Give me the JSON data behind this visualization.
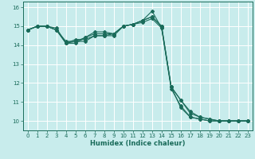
{
  "xlabel": "Humidex (Indice chaleur)",
  "xlim": [
    -0.5,
    23.5
  ],
  "ylim": [
    9.5,
    16.3
  ],
  "yticks": [
    10,
    11,
    12,
    13,
    14,
    15,
    16
  ],
  "xticks": [
    0,
    1,
    2,
    3,
    4,
    5,
    6,
    7,
    8,
    9,
    10,
    11,
    12,
    13,
    14,
    15,
    16,
    17,
    18,
    19,
    20,
    21,
    22,
    23
  ],
  "background_color": "#c8ecec",
  "grid_color": "#ffffff",
  "line_color": "#1a6b5a",
  "lines": [
    {
      "x": [
        0,
        1,
        2,
        3,
        4,
        5,
        6,
        7,
        8,
        9,
        10,
        11,
        12,
        13,
        14,
        15,
        16,
        17,
        18,
        19,
        20,
        21,
        22,
        23
      ],
      "y": [
        14.8,
        15.0,
        15.0,
        14.8,
        14.1,
        14.2,
        14.4,
        14.6,
        14.6,
        14.6,
        15.0,
        15.1,
        15.3,
        15.8,
        14.9,
        11.8,
        11.1,
        10.4,
        10.2,
        10.1,
        10.0,
        10.0,
        10.0,
        10.0
      ]
    },
    {
      "x": [
        0,
        1,
        2,
        3,
        4,
        5,
        6,
        7,
        8,
        9,
        10,
        11,
        12,
        13,
        14,
        15,
        16,
        17,
        18,
        19,
        20,
        21,
        22,
        23
      ],
      "y": [
        14.8,
        15.0,
        15.0,
        14.9,
        14.1,
        14.3,
        14.3,
        14.5,
        14.5,
        14.6,
        15.0,
        15.1,
        15.3,
        15.5,
        15.0,
        11.8,
        10.7,
        10.2,
        10.1,
        10.0,
        10.0,
        10.0,
        10.0,
        10.0
      ]
    },
    {
      "x": [
        0,
        1,
        2,
        3,
        4,
        5,
        6,
        7,
        8,
        9,
        10,
        11,
        12,
        13,
        14,
        15,
        16,
        17,
        18,
        19,
        20,
        21,
        22,
        23
      ],
      "y": [
        14.8,
        15.0,
        15.0,
        14.8,
        14.2,
        14.2,
        14.2,
        14.5,
        14.5,
        14.5,
        15.0,
        15.1,
        15.2,
        15.4,
        14.9,
        11.7,
        10.8,
        10.2,
        10.1,
        10.0,
        10.0,
        10.0,
        10.0,
        10.0
      ]
    },
    {
      "x": [
        0,
        1,
        2,
        3,
        4,
        5,
        6,
        7,
        8,
        9,
        10,
        11,
        12,
        13,
        14,
        15,
        16,
        17,
        18,
        19,
        20,
        21,
        22,
        23
      ],
      "y": [
        14.8,
        15.0,
        15.0,
        14.8,
        14.1,
        14.1,
        14.4,
        14.7,
        14.7,
        14.6,
        15.0,
        15.1,
        15.3,
        15.5,
        15.0,
        11.8,
        11.1,
        10.5,
        10.2,
        10.1,
        10.0,
        10.0,
        10.0,
        10.0
      ]
    }
  ]
}
